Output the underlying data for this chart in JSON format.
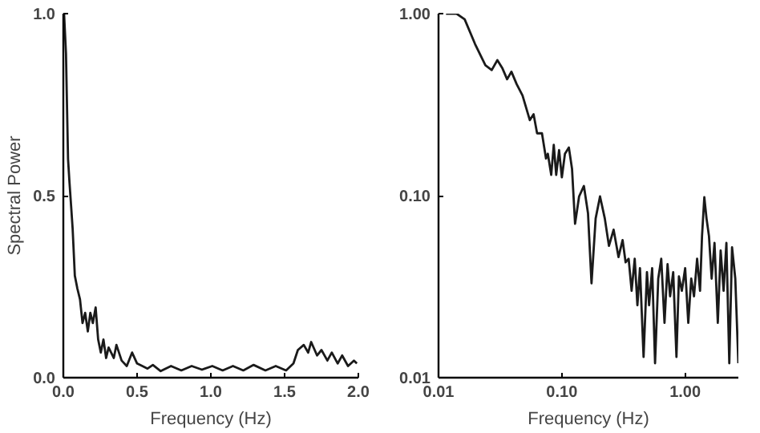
{
  "chart_data": [
    {
      "type": "line",
      "xlabel": "Frequency (Hz)",
      "ylabel": "Spectral Power",
      "xlim": [
        0,
        2
      ],
      "ylim": [
        0,
        1
      ],
      "xticks": [
        {
          "value": 0,
          "label": "0.0"
        },
        {
          "value": 0.5,
          "label": "0.5"
        },
        {
          "value": 1,
          "label": "1.0"
        },
        {
          "value": 1.5,
          "label": "1.5"
        },
        {
          "value": 2,
          "label": "2.0"
        }
      ],
      "yticks": [
        {
          "value": 0,
          "label": "0.0"
        },
        {
          "value": 0.5,
          "label": "0.5"
        },
        {
          "value": 1,
          "label": "1.0"
        }
      ],
      "line_style": "solid",
      "series": [
        {
          "color": "#1a1a1a",
          "x": [
            0.005,
            0.018,
            0.032,
            0.042,
            0.053,
            0.063,
            0.078,
            0.095,
            0.113,
            0.13,
            0.148,
            0.166,
            0.183,
            0.2,
            0.219,
            0.236,
            0.254,
            0.272,
            0.29,
            0.307,
            0.342,
            0.36,
            0.395,
            0.43,
            0.466,
            0.5,
            0.536,
            0.571,
            0.607,
            0.66,
            0.73,
            0.8,
            0.87,
            0.94,
            1.01,
            1.08,
            1.15,
            1.22,
            1.29,
            1.37,
            1.44,
            1.51,
            1.56,
            1.59,
            1.63,
            1.66,
            1.68,
            1.72,
            1.75,
            1.79,
            1.82,
            1.86,
            1.89,
            1.93,
            1.97,
            1.99
          ],
          "values": [
            1.0,
            0.89,
            0.6,
            0.535,
            0.47,
            0.41,
            0.28,
            0.245,
            0.215,
            0.15,
            0.178,
            0.127,
            0.178,
            0.15,
            0.193,
            0.105,
            0.069,
            0.105,
            0.054,
            0.083,
            0.054,
            0.09,
            0.047,
            0.032,
            0.069,
            0.039,
            0.032,
            0.025,
            0.035,
            0.018,
            0.032,
            0.02,
            0.032,
            0.022,
            0.032,
            0.02,
            0.032,
            0.02,
            0.035,
            0.02,
            0.032,
            0.02,
            0.039,
            0.076,
            0.09,
            0.069,
            0.098,
            0.061,
            0.076,
            0.047,
            0.069,
            0.039,
            0.061,
            0.032,
            0.047,
            0.039
          ]
        }
      ]
    },
    {
      "type": "line",
      "xlabel": "Frequency (Hz)",
      "log": "xy",
      "xlim": [
        0.01,
        2.7
      ],
      "ylim": [
        0.01,
        1
      ],
      "xticks": [
        {
          "value": 0.01,
          "label": "0.01"
        },
        {
          "value": 0.1,
          "label": "0.10"
        },
        {
          "value": 1,
          "label": "1.00"
        }
      ],
      "yticks": [
        {
          "value": 0.01,
          "label": "0.01"
        },
        {
          "value": 0.1,
          "label": "0.10"
        },
        {
          "value": 1,
          "label": "1.00"
        }
      ],
      "line_style": "solid",
      "series": [
        {
          "color": "#1a1a1a",
          "x": [
            0.0115,
            0.014,
            0.0163,
            0.0198,
            0.024,
            0.027,
            0.03,
            0.033,
            0.036,
            0.039,
            0.043,
            0.048,
            0.055,
            0.059,
            0.063,
            0.069,
            0.0744,
            0.077,
            0.082,
            0.086,
            0.09,
            0.095,
            0.1,
            0.106,
            0.114,
            0.121,
            0.128,
            0.138,
            0.151,
            0.163,
            0.174,
            0.188,
            0.204,
            0.223,
            0.241,
            0.263,
            0.288,
            0.311,
            0.329,
            0.348,
            0.368,
            0.39,
            0.41,
            0.43,
            0.46,
            0.49,
            0.51,
            0.54,
            0.57,
            0.605,
            0.64,
            0.68,
            0.72,
            0.755,
            0.8,
            0.85,
            0.89,
            0.94,
            1.0,
            1.06,
            1.12,
            1.18,
            1.25,
            1.32,
            1.37,
            1.43,
            1.49,
            1.56,
            1.64,
            1.73,
            1.84,
            1.94,
            2.05,
            2.16,
            2.28,
            2.4,
            2.55,
            2.7
          ],
          "values": [
            1.0,
            1.0,
            0.93,
            0.68,
            0.52,
            0.49,
            0.555,
            0.5,
            0.436,
            0.48,
            0.41,
            0.355,
            0.26,
            0.28,
            0.22,
            0.22,
            0.16,
            0.17,
            0.13,
            0.19,
            0.13,
            0.178,
            0.126,
            0.17,
            0.184,
            0.14,
            0.07,
            0.099,
            0.113,
            0.08,
            0.033,
            0.075,
            0.099,
            0.075,
            0.053,
            0.065,
            0.046,
            0.057,
            0.043,
            0.045,
            0.03,
            0.045,
            0.025,
            0.04,
            0.013,
            0.038,
            0.025,
            0.04,
            0.012,
            0.035,
            0.045,
            0.02,
            0.042,
            0.028,
            0.038,
            0.013,
            0.036,
            0.03,
            0.04,
            0.02,
            0.035,
            0.028,
            0.045,
            0.03,
            0.06,
            0.098,
            0.075,
            0.06,
            0.035,
            0.055,
            0.02,
            0.05,
            0.03,
            0.055,
            0.012,
            0.052,
            0.035,
            0.012
          ]
        }
      ]
    }
  ]
}
